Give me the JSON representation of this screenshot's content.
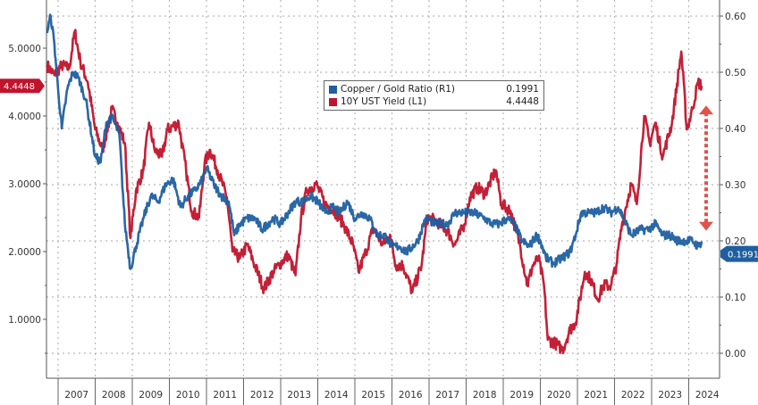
{
  "chart_data": {
    "type": "line",
    "title": "",
    "colors": {
      "copper_gold": "#1f5fa0",
      "yield": "#c0142c",
      "arrow": "#e0524a"
    },
    "x_range": [
      2006.7,
      2024.95
    ],
    "x_tick_labels": [
      "2007",
      "2008",
      "2009",
      "2010",
      "2011",
      "2012",
      "2013",
      "2014",
      "2015",
      "2016",
      "2017",
      "2018",
      "2019",
      "2020",
      "2021",
      "2022",
      "2023",
      "2024"
    ],
    "left_axis": {
      "ylim": [
        0,
        5.7
      ],
      "ticks": [
        1,
        2,
        3,
        4,
        5
      ],
      "tick_labels": [
        "1.0000",
        "2.0000",
        "3.0000",
        "4.0000",
        "5.0000"
      ]
    },
    "right_axis": {
      "ylim": [
        -0.06,
        0.63
      ],
      "ticks": [
        0,
        0.1,
        0.2,
        0.3,
        0.4,
        0.5,
        0.6
      ],
      "tick_labels": [
        "0.00",
        "0.10",
        "0.20",
        "0.30",
        "0.40",
        "0.50",
        "0.60"
      ]
    },
    "legend": {
      "placement": "top-center",
      "entries": [
        {
          "name": "Copper / Gold Ratio (R1)",
          "value": "0.1991"
        },
        {
          "name": "10Y UST Yield (L1)",
          "value": "4.4448"
        }
      ]
    },
    "last_value_labels": {
      "yield": "4.4448",
      "copper_gold": "0.1991"
    },
    "series": [
      {
        "name": "10Y UST Yield (L1)",
        "axis": "left",
        "x": [
          2006.7,
          2006.9,
          2007.1,
          2007.3,
          2007.45,
          2007.6,
          2007.8,
          2008.0,
          2008.2,
          2008.45,
          2008.6,
          2008.8,
          2008.95,
          2009.1,
          2009.3,
          2009.45,
          2009.6,
          2009.8,
          2009.95,
          2010.25,
          2010.45,
          2010.6,
          2010.8,
          2010.95,
          2011.1,
          2011.3,
          2011.55,
          2011.7,
          2011.9,
          2012.1,
          2012.3,
          2012.55,
          2012.8,
          2012.95,
          2013.2,
          2013.4,
          2013.55,
          2013.7,
          2013.95,
          2014.2,
          2014.45,
          2014.7,
          2014.95,
          2015.1,
          2015.3,
          2015.5,
          2015.75,
          2015.95,
          2016.1,
          2016.3,
          2016.55,
          2016.8,
          2016.95,
          2017.2,
          2017.5,
          2017.7,
          2017.95,
          2018.1,
          2018.3,
          2018.5,
          2018.8,
          2018.95,
          2019.2,
          2019.45,
          2019.65,
          2019.8,
          2019.95,
          2020.1,
          2020.2,
          2020.4,
          2020.6,
          2020.8,
          2020.95,
          2021.2,
          2021.35,
          2021.55,
          2021.7,
          2021.9,
          2022.05,
          2022.2,
          2022.45,
          2022.6,
          2022.8,
          2022.95,
          2023.1,
          2023.3,
          2023.55,
          2023.8,
          2023.95,
          2024.1,
          2024.25,
          2024.35
        ],
        "y": [
          4.75,
          4.6,
          4.75,
          4.7,
          5.25,
          4.8,
          4.5,
          3.8,
          3.5,
          4.1,
          3.9,
          3.6,
          2.2,
          2.9,
          3.2,
          3.9,
          3.5,
          3.4,
          3.8,
          3.9,
          3.2,
          2.6,
          2.5,
          3.3,
          3.5,
          3.2,
          2.8,
          2.0,
          1.9,
          2.1,
          1.8,
          1.45,
          1.7,
          1.8,
          1.95,
          1.65,
          2.5,
          2.9,
          3.0,
          2.7,
          2.6,
          2.4,
          2.1,
          1.7,
          2.0,
          2.35,
          2.1,
          2.25,
          1.8,
          1.8,
          1.4,
          1.8,
          2.5,
          2.45,
          2.3,
          2.1,
          2.4,
          2.8,
          2.95,
          2.85,
          3.2,
          2.7,
          2.6,
          2.1,
          1.5,
          1.8,
          1.9,
          1.5,
          0.7,
          0.65,
          0.55,
          0.85,
          0.95,
          1.7,
          1.6,
          1.3,
          1.5,
          1.5,
          1.8,
          2.4,
          3.0,
          2.7,
          4.0,
          3.6,
          3.9,
          3.4,
          3.9,
          4.95,
          3.8,
          4.1,
          4.5,
          4.4448
        ]
      },
      {
        "name": "Copper / Gold Ratio (R1)",
        "axis": "right",
        "x": [
          2006.7,
          2006.8,
          2006.9,
          2007.0,
          2007.1,
          2007.25,
          2007.4,
          2007.55,
          2007.75,
          2008.0,
          2008.15,
          2008.3,
          2008.45,
          2008.65,
          2008.8,
          2008.95,
          2009.1,
          2009.3,
          2009.5,
          2009.7,
          2009.9,
          2010.1,
          2010.3,
          2010.5,
          2010.7,
          2010.9,
          2011.0,
          2011.2,
          2011.4,
          2011.6,
          2011.75,
          2011.9,
          2012.1,
          2012.3,
          2012.5,
          2012.8,
          2013.0,
          2013.2,
          2013.4,
          2013.6,
          2013.8,
          2014.0,
          2014.2,
          2014.4,
          2014.6,
          2014.8,
          2015.0,
          2015.2,
          2015.4,
          2015.6,
          2015.8,
          2016.0,
          2016.2,
          2016.4,
          2016.7,
          2016.9,
          2017.2,
          2017.5,
          2017.7,
          2017.95,
          2018.2,
          2018.5,
          2018.7,
          2018.9,
          2019.1,
          2019.3,
          2019.5,
          2019.7,
          2019.9,
          2020.0,
          2020.15,
          2020.35,
          2020.6,
          2020.8,
          2020.95,
          2021.1,
          2021.3,
          2021.5,
          2021.7,
          2021.9,
          2022.1,
          2022.25,
          2022.45,
          2022.7,
          2022.9,
          2023.1,
          2023.3,
          2023.5,
          2023.7,
          2023.9,
          2024.1,
          2024.25,
          2024.35
        ],
        "y": [
          0.57,
          0.6,
          0.55,
          0.47,
          0.4,
          0.47,
          0.5,
          0.49,
          0.45,
          0.35,
          0.34,
          0.41,
          0.42,
          0.39,
          0.23,
          0.15,
          0.19,
          0.24,
          0.28,
          0.27,
          0.3,
          0.31,
          0.26,
          0.28,
          0.29,
          0.31,
          0.33,
          0.3,
          0.28,
          0.27,
          0.21,
          0.23,
          0.24,
          0.24,
          0.22,
          0.24,
          0.23,
          0.25,
          0.27,
          0.27,
          0.28,
          0.27,
          0.25,
          0.26,
          0.25,
          0.27,
          0.24,
          0.25,
          0.24,
          0.21,
          0.21,
          0.19,
          0.19,
          0.18,
          0.2,
          0.24,
          0.23,
          0.23,
          0.25,
          0.25,
          0.25,
          0.24,
          0.23,
          0.23,
          0.24,
          0.23,
          0.2,
          0.19,
          0.21,
          0.2,
          0.17,
          0.16,
          0.17,
          0.18,
          0.21,
          0.25,
          0.25,
          0.25,
          0.26,
          0.25,
          0.26,
          0.24,
          0.21,
          0.22,
          0.22,
          0.23,
          0.21,
          0.21,
          0.2,
          0.2,
          0.2,
          0.19,
          0.1991
        ]
      }
    ]
  }
}
